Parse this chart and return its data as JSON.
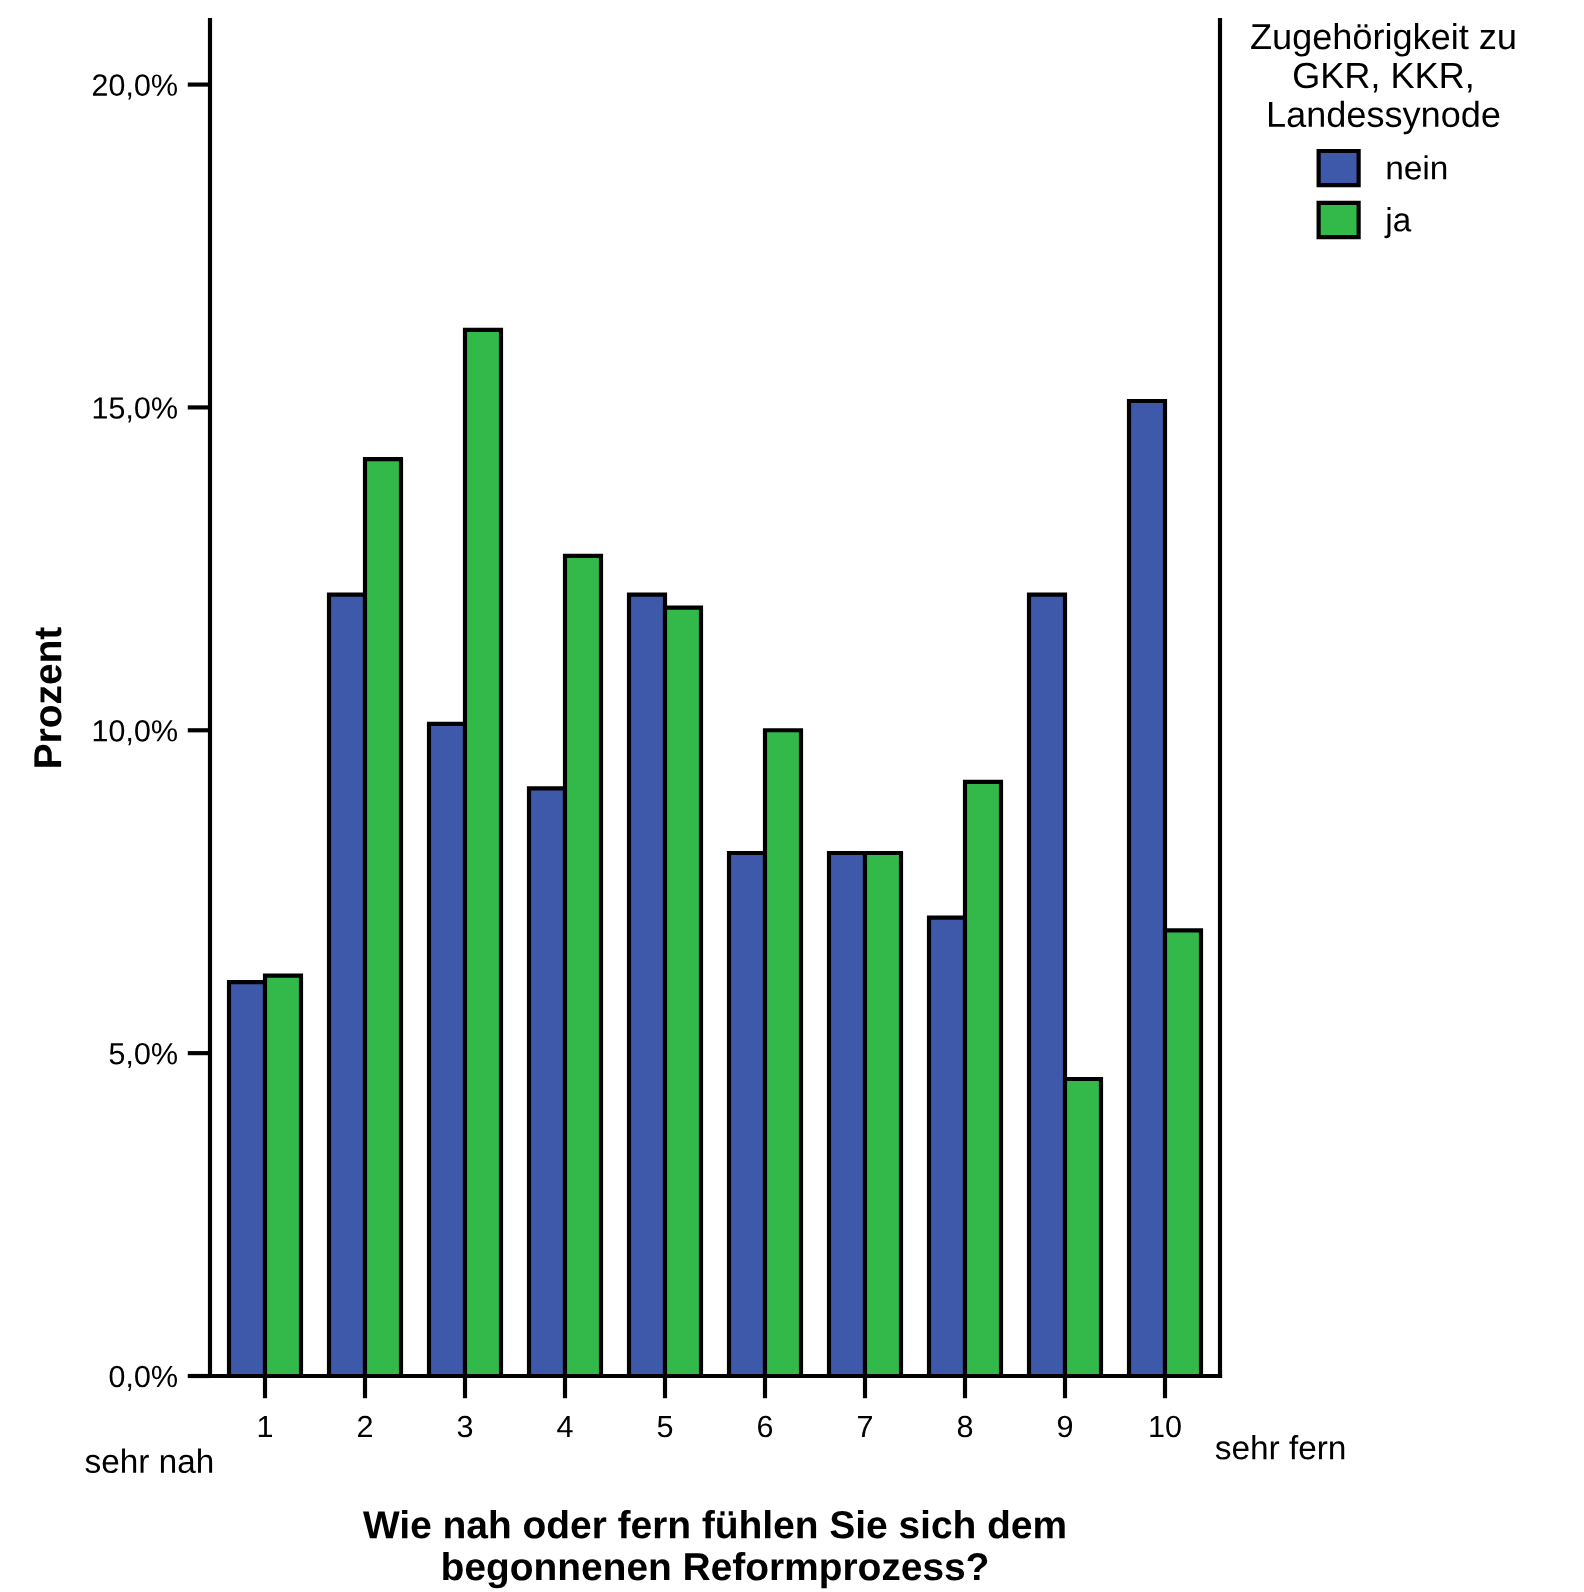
{
  "chart_data": {
    "type": "bar",
    "categories": [
      "1",
      "2",
      "3",
      "4",
      "5",
      "6",
      "7",
      "8",
      "9",
      "10"
    ],
    "series": [
      {
        "name": "nein",
        "color": "#3f59aa",
        "values": [
          6.1,
          12.1,
          10.1,
          9.1,
          12.1,
          8.1,
          8.1,
          7.1,
          12.1,
          15.1
        ]
      },
      {
        "name": "ja",
        "color": "#33b94a",
        "values": [
          6.2,
          14.2,
          16.2,
          12.7,
          11.9,
          10.0,
          8.1,
          9.2,
          4.6,
          6.9
        ]
      }
    ],
    "xlabel": "Wie nah oder fern fühlen Sie sich dem\nbegonnenen Reformprozess?",
    "ylabel": "Prozent",
    "legend_title": "Zugehörigkeit zu\nGKR, KKR,\nLandessynode",
    "legend": "top right",
    "annotations": [
      "sehr nah",
      "sehr fern"
    ],
    "ylim": [
      0,
      21
    ],
    "yticks": [
      {
        "value": 0,
        "label": "0,0%"
      },
      {
        "value": 5,
        "label": "5,0%"
      },
      {
        "value": 10,
        "label": "10,0%"
      },
      {
        "value": 15,
        "label": "15,0%"
      },
      {
        "value": 20,
        "label": "20,0%"
      }
    ],
    "grid": false
  }
}
